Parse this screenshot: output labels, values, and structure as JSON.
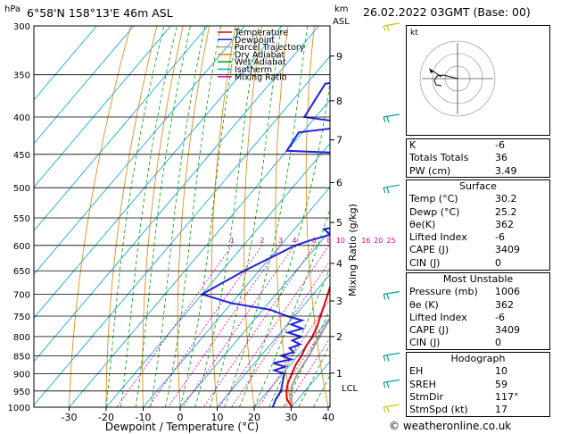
{
  "header": {
    "location": "6°58'N 158°13'E 46m ASL",
    "date": "26.02.2022 03GMT (Base: 00)",
    "hpa": "hPa",
    "km": "km",
    "asl": "ASL",
    "credit": "© weatheronline.co.uk"
  },
  "chart_data": {
    "type": "line",
    "xlabel": "Dewpoint / Temperature (°C)",
    "ylabel_right": "Mixing Ratio (g/kg)",
    "x_ticks": [
      "-30",
      "-20",
      "-10",
      "0",
      "10",
      "20",
      "30",
      "40"
    ],
    "x_values": [
      -30,
      -20,
      -10,
      0,
      10,
      20,
      30,
      40
    ],
    "pressure_levels": [
      "300",
      "350",
      "400",
      "450",
      "500",
      "550",
      "600",
      "650",
      "700",
      "750",
      "800",
      "850",
      "900",
      "950",
      "1000"
    ],
    "pressure_values": [
      300,
      350,
      400,
      450,
      500,
      550,
      600,
      650,
      700,
      750,
      800,
      850,
      900,
      950,
      1000
    ],
    "km_ticks": [
      {
        "label": "9",
        "p": 330
      },
      {
        "label": "8",
        "p": 380
      },
      {
        "label": "7",
        "p": 430
      },
      {
        "label": "6",
        "p": 492
      },
      {
        "label": "5",
        "p": 558
      },
      {
        "label": "4",
        "p": 635
      },
      {
        "label": "3",
        "p": 715
      },
      {
        "label": "2",
        "p": 800
      },
      {
        "label": "1",
        "p": 898
      }
    ],
    "lcl_label": "LCL",
    "lcl_p": 940,
    "mixing_ratio_labels": [
      "1",
      "2",
      "3",
      "4",
      "6",
      "8",
      "10",
      "16",
      "20",
      "25"
    ],
    "mixing_ratio_values": [
      1,
      2,
      3,
      4,
      6,
      8,
      10,
      16,
      20,
      25
    ],
    "legend": [
      {
        "name": "Temperature",
        "color": "#e00000"
      },
      {
        "name": "Dewpoint",
        "color": "#2020e0"
      },
      {
        "name": "Parcel Trajectory",
        "color": "#a0a0a0"
      },
      {
        "name": "Dry Adiabat",
        "color": "#e08000"
      },
      {
        "name": "Wet Adiabat",
        "color": "#00a000"
      },
      {
        "name": "Isotherm",
        "color": "#00a0e0"
      },
      {
        "name": "Mixing Ratio",
        "color": "#e000a0"
      }
    ],
    "temperature": [
      [
        1000,
        30.2
      ],
      [
        975,
        27
      ],
      [
        950,
        25
      ],
      [
        925,
        23.5
      ],
      [
        900,
        22.5
      ],
      [
        875,
        21.5
      ],
      [
        850,
        21
      ],
      [
        825,
        20
      ],
      [
        800,
        19.5
      ],
      [
        775,
        18.5
      ],
      [
        750,
        17
      ],
      [
        700,
        14
      ],
      [
        650,
        10.5
      ],
      [
        600,
        7
      ],
      [
        550,
        3
      ],
      [
        500,
        -2
      ],
      [
        450,
        -7.5
      ],
      [
        400,
        -14
      ],
      [
        375,
        -17
      ],
      [
        350,
        -21
      ]
    ],
    "dewpoint": [
      [
        1000,
        25
      ],
      [
        975,
        24
      ],
      [
        950,
        23.5
      ],
      [
        925,
        22
      ],
      [
        900,
        20.5
      ],
      [
        890,
        17
      ],
      [
        880,
        19
      ],
      [
        870,
        15
      ],
      [
        860,
        19
      ],
      [
        850,
        15.5
      ],
      [
        840,
        18
      ],
      [
        830,
        16
      ],
      [
        820,
        18
      ],
      [
        810,
        15
      ],
      [
        800,
        16.5
      ],
      [
        790,
        12
      ],
      [
        780,
        15
      ],
      [
        770,
        11
      ],
      [
        760,
        13
      ],
      [
        750,
        8
      ],
      [
        735,
        2
      ],
      [
        720,
        -10
      ],
      [
        700,
        -20
      ],
      [
        650,
        -14
      ],
      [
        600,
        -6
      ],
      [
        590,
        -3
      ],
      [
        580,
        1
      ],
      [
        570,
        -2
      ],
      [
        560,
        5
      ],
      [
        550,
        2
      ],
      [
        530,
        3
      ],
      [
        500,
        -1
      ],
      [
        470,
        -3.5
      ],
      [
        450,
        -6
      ],
      [
        445,
        -30
      ],
      [
        420,
        -31
      ],
      [
        410,
        -16
      ],
      [
        400,
        -33
      ],
      [
        360,
        -35
      ],
      [
        350,
        -18
      ],
      [
        340,
        -30
      ],
      [
        320,
        -26
      ],
      [
        310,
        -15
      ],
      [
        300,
        -12
      ]
    ],
    "parcel": [
      [
        1000,
        30.2
      ],
      [
        940,
        25.5
      ],
      [
        900,
        24
      ],
      [
        850,
        23
      ],
      [
        800,
        21.5
      ],
      [
        750,
        20
      ],
      [
        700,
        18
      ],
      [
        650,
        15
      ],
      [
        600,
        12
      ],
      [
        550,
        8.5
      ],
      [
        500,
        4.5
      ],
      [
        450,
        0
      ],
      [
        400,
        -5
      ],
      [
        350,
        -11
      ]
    ]
  },
  "indices": {
    "rows": [
      {
        "label": "K",
        "value": "-6"
      },
      {
        "label": "Totals Totals",
        "value": "36"
      },
      {
        "label": "PW (cm)",
        "value": "3.49"
      }
    ]
  },
  "surface": {
    "title": "Surface",
    "rows": [
      {
        "label": "Temp (°C)",
        "value": "30.2"
      },
      {
        "label": "Dewp (°C)",
        "value": "25.2"
      },
      {
        "label": "θe(K)",
        "value": "362"
      },
      {
        "label": "Lifted Index",
        "value": "-6"
      },
      {
        "label": "CAPE (J)",
        "value": "3409"
      },
      {
        "label": "CIN (J)",
        "value": "0"
      }
    ]
  },
  "most_unstable": {
    "title": "Most Unstable",
    "rows": [
      {
        "label": "Pressure (mb)",
        "value": "1006"
      },
      {
        "label": "θe (K)",
        "value": "362"
      },
      {
        "label": "Lifted Index",
        "value": "-6"
      },
      {
        "label": "CAPE (J)",
        "value": "3409"
      },
      {
        "label": "CIN (J)",
        "value": "0"
      }
    ]
  },
  "hodograph": {
    "title": "Hodograph",
    "label": "kt",
    "rows": [
      {
        "label": "EH",
        "value": "10"
      },
      {
        "label": "SREH",
        "value": "59"
      },
      {
        "label": "StmDir",
        "value": "117°"
      },
      {
        "label": "StmSpd (kt)",
        "value": "17"
      }
    ]
  }
}
